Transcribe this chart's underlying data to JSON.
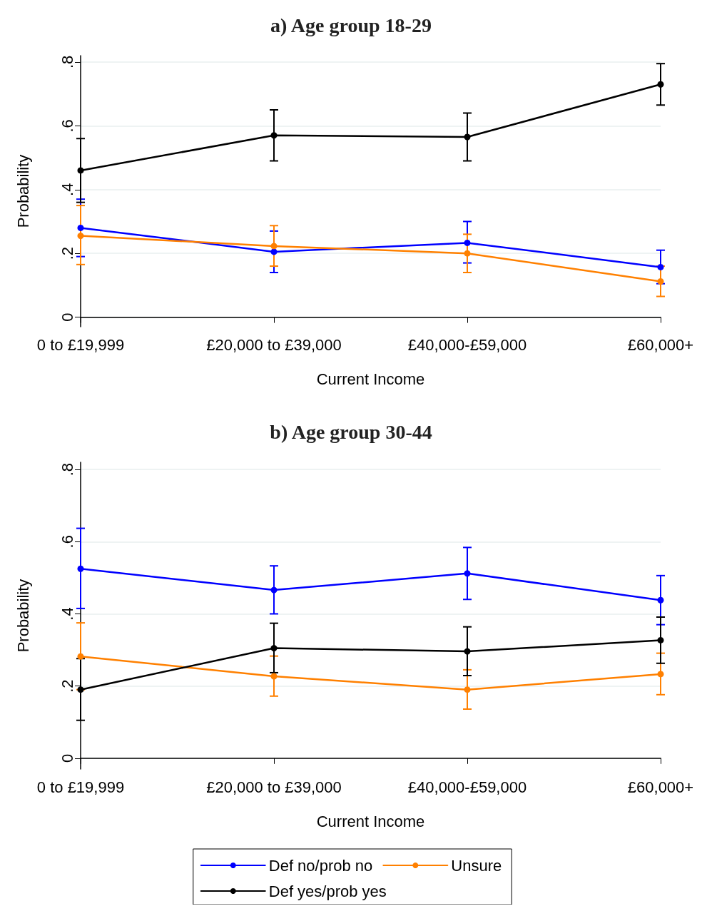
{
  "chart_data": [
    {
      "type": "line",
      "title": "a) Age group 18-29",
      "xlabel": "Current Income",
      "ylabel": "Probability",
      "categories": [
        "0 to £19,999",
        "£20,000 to £39,000",
        "£40,000-£59,000",
        "£60,000+"
      ],
      "ylim": [
        -0.03,
        0.82
      ],
      "yticks": [
        {
          "value": 0,
          "label": "0"
        },
        {
          "value": 0.2,
          "label": ".2"
        },
        {
          "value": 0.4,
          "label": ".4"
        },
        {
          "value": 0.6,
          "label": ".6"
        },
        {
          "value": 0.8,
          "label": ".8"
        }
      ],
      "grid": "y",
      "legend": false,
      "marker": "circle",
      "line_style": "solid",
      "series": [
        {
          "color": "#0000ff",
          "values": [
            0.28,
            0.205,
            0.233,
            0.157
          ],
          "errors": [
            [
              0.19,
              0.37
            ],
            [
              0.14,
              0.27
            ],
            [
              0.17,
              0.3
            ],
            [
              0.105,
              0.21
            ]
          ]
        },
        {
          "color": "#ff8000",
          "values": [
            0.255,
            0.223,
            0.2,
            0.112
          ],
          "errors": [
            [
              0.165,
              0.35
            ],
            [
              0.16,
              0.287
            ],
            [
              0.14,
              0.26
            ],
            [
              0.065,
              0.16
            ]
          ]
        },
        {
          "color": "#000000",
          "values": [
            0.46,
            0.57,
            0.565,
            0.73
          ],
          "errors": [
            [
              0.36,
              0.56
            ],
            [
              0.49,
              0.65
            ],
            [
              0.49,
              0.64
            ],
            [
              0.665,
              0.795
            ]
          ]
        }
      ]
    },
    {
      "type": "line",
      "title": "b) Age group 30-44",
      "xlabel": "Current Income",
      "ylabel": "Probability",
      "categories": [
        "0 to £19,999",
        "£20,000 to £39,000",
        "£40,000-£59,000",
        "£60,000+"
      ],
      "ylim": [
        -0.03,
        0.82
      ],
      "yticks": [
        {
          "value": 0,
          "label": "0"
        },
        {
          "value": 0.2,
          "label": ".2"
        },
        {
          "value": 0.4,
          "label": ".4"
        },
        {
          "value": 0.6,
          "label": ".6"
        },
        {
          "value": 0.8,
          "label": ".8"
        }
      ],
      "grid": "y",
      "legend": "bottom",
      "marker": "circle",
      "line_style": "solid",
      "series": [
        {
          "name": "Def no/prob no",
          "color": "#0000ff",
          "values": [
            0.525,
            0.466,
            0.512,
            0.438
          ],
          "errors": [
            [
              0.415,
              0.637
            ],
            [
              0.4,
              0.533
            ],
            [
              0.44,
              0.584
            ],
            [
              0.37,
              0.506
            ]
          ]
        },
        {
          "name": "Unsure",
          "color": "#ff8000",
          "values": [
            0.282,
            0.227,
            0.19,
            0.233
          ],
          "errors": [
            [
              0.19,
              0.375
            ],
            [
              0.172,
              0.283
            ],
            [
              0.136,
              0.245
            ],
            [
              0.176,
              0.291
            ]
          ]
        },
        {
          "name": "Def yes/prob yes",
          "color": "#000000",
          "values": [
            0.19,
            0.305,
            0.296,
            0.327
          ],
          "errors": [
            [
              0.105,
              0.276
            ],
            [
              0.237,
              0.374
            ],
            [
              0.229,
              0.364
            ],
            [
              0.263,
              0.391
            ]
          ]
        }
      ]
    }
  ]
}
